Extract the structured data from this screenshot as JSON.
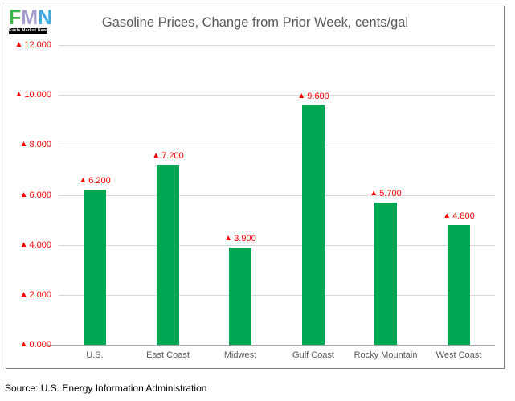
{
  "logo": {
    "letters": [
      "F",
      "M",
      "N"
    ],
    "letter_colors": [
      "#3db54a",
      "#a79cce",
      "#41a7dc"
    ],
    "tagline": "Fuels Market News",
    "bar_color": "#000000"
  },
  "chart_data": {
    "type": "bar",
    "title": "Gasoline Prices, Change from Prior Week, cents/gal",
    "categories": [
      "U.S.",
      "East Coast",
      "Midwest",
      "Gulf Coast",
      "Rocky Mountain",
      "West Coast"
    ],
    "values": [
      6.2,
      7.2,
      3.9,
      9.6,
      5.7,
      4.8
    ],
    "data_labels": [
      "6.200",
      "7.200",
      "3.900",
      "9.600",
      "5.700",
      "4.800"
    ],
    "marker": "▲",
    "xlabel": "",
    "ylabel": "",
    "ylim": [
      0,
      12
    ],
    "ytick_values": [
      0,
      2,
      4,
      6,
      8,
      10,
      12
    ],
    "ytick_labels": [
      "0.000",
      "2.000",
      "4.000",
      "6.000",
      "8.000",
      "10.000",
      "12.000"
    ],
    "grid": true,
    "legend": false,
    "colors": {
      "bar": "#00a651",
      "data_label": "#ff0000",
      "ytick": "#ff0000",
      "category": "#595959",
      "title": "#595959",
      "gridline": "#d9d9d9",
      "axis_line": "#a6a6a6",
      "border": "#808080"
    }
  },
  "source_note": "Source: U.S. Energy Information Administration"
}
